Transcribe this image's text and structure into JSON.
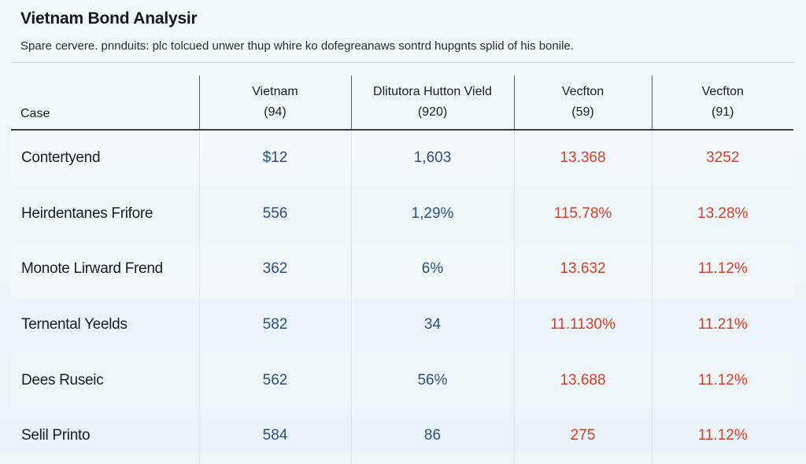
{
  "title": "Vietnam Bond Analysir",
  "subtitle": "Spare cervere. pnnduits: plc tolcued unwer thup whire ko dofegreanaws sontrd hupgnts splid of his bonile.",
  "columns": [
    {
      "line1": "",
      "line2": "Case"
    },
    {
      "line1": "Vietnam",
      "line2": "(94)"
    },
    {
      "line1": "Dlitutora Hutton Vield",
      "line2": "(920)"
    },
    {
      "line1": "Vecfton",
      "line2": "(59)"
    },
    {
      "line1": "Vecfton",
      "line2": "(91)"
    }
  ],
  "rows": [
    {
      "case": "Contertyend",
      "v1": "$12",
      "v2": "1,603",
      "v3": "13.368",
      "v4": "3252"
    },
    {
      "case": "Heirdentanes Frifore",
      "v1": "556",
      "v2": "1,29%",
      "v3": "115.78%",
      "v4": "13.28%"
    },
    {
      "case": "Monote Lirward Frend",
      "v1": "362",
      "v2": "6%",
      "v3": "13.632",
      "v4": "11.12%"
    },
    {
      "case": "Ternental Yeelds",
      "v1": "582",
      "v2": "34",
      "v3": "11.1130%",
      "v4": "11.21%"
    },
    {
      "case": "Dees Ruseic",
      "v1": "562",
      "v2": "56%",
      "v3": "13.688",
      "v4": "11.12%"
    },
    {
      "case": "Selil Printo",
      "v1": "584",
      "v2": "86",
      "v3": "275",
      "v4": "11.12%"
    }
  ],
  "colors": {
    "case_text": "#1a1d22",
    "blue_values": "#2c4f86",
    "red_values": "#d9402a",
    "background": "#eef6fa"
  }
}
